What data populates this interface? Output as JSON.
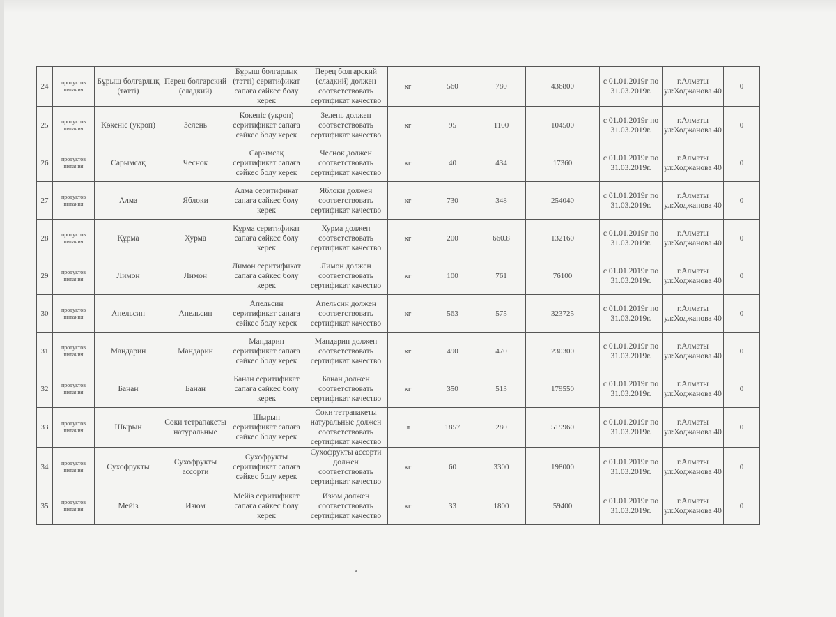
{
  "table": {
    "rows": [
      [
        "24",
        "продуктов питания",
        "Бұрыш болгарлық (тәтті)",
        "Перец болгарский (сладкий)",
        "Бұрыш болгарлық (тәтті) серитификат сапаға сәйкес болу керек",
        "Перец болгарский (сладкий) должен соответствовать сертификат качество",
        "кг",
        "560",
        "780",
        "436800",
        "с 01.01.2019г по 31.03.2019г.",
        "г.Алматы ул:Ходжанова 40",
        "0"
      ],
      [
        "25",
        "продуктов питания",
        "Көкеніс (укроп)",
        "Зелень",
        "Көкеніс (укроп) серитификат сапаға сәйкес болу керек",
        "Зелень должен соответствовать сертификат качество",
        "кг",
        "95",
        "1100",
        "104500",
        "с 01.01.2019г по 31.03.2019г.",
        "г.Алматы ул:Ходжанова 40",
        "0"
      ],
      [
        "26",
        "продуктов питания",
        "Сарымсақ",
        "Чеснок",
        "Сарымсақ серитификат сапаға сәйкес болу керек",
        "Чеснок должен соответствовать сертификат качество",
        "кг",
        "40",
        "434",
        "17360",
        "с 01.01.2019г по 31.03.2019г.",
        "г.Алматы ул:Ходжанова 40",
        "0"
      ],
      [
        "27",
        "продуктов питания",
        "Алма",
        "Яблоки",
        "Алма серитификат сапаға сәйкес болу керек",
        "Яблоки должен соответствовать сертификат качество",
        "кг",
        "730",
        "348",
        "254040",
        "с 01.01.2019г по 31.03.2019г.",
        "г.Алматы ул:Ходжанова 40",
        "0"
      ],
      [
        "28",
        "продуктов питания",
        "Құрма",
        "Хурма",
        "Құрма серитификат сапаға сәйкес болу керек",
        "Хурма должен соответствовать сертификат качество",
        "кг",
        "200",
        "660.8",
        "132160",
        "с 01.01.2019г по 31.03.2019г.",
        "г.Алматы ул:Ходжанова 40",
        "0"
      ],
      [
        "29",
        "продуктов питания",
        "Лимон",
        "Лимон",
        "Лимон серитификат сапаға сәйкес болу керек",
        "Лимон должен соответствовать сертификат качество",
        "кг",
        "100",
        "761",
        "76100",
        "с 01.01.2019г по 31.03.2019г.",
        "г.Алматы ул:Ходжанова 40",
        "0"
      ],
      [
        "30",
        "продуктов питания",
        "Апельсин",
        "Апельсин",
        "Апельсин серитификат сапаға сәйкес болу керек",
        "Апельсин должен соответствовать сертификат качество",
        "кг",
        "563",
        "575",
        "323725",
        "с 01.01.2019г по 31.03.2019г.",
        "г.Алматы ул:Ходжанова 40",
        "0"
      ],
      [
        "31",
        "продуктов питания",
        "Мандарин",
        "Мандарин",
        "Мандарин серитификат сапаға сәйкес болу керек",
        "Мандарин должен соответствовать сертификат качество",
        "кг",
        "490",
        "470",
        "230300",
        "с 01.01.2019г по 31.03.2019г.",
        "г.Алматы ул:Ходжанова 40",
        "0"
      ],
      [
        "32",
        "продуктов питания",
        "Банан",
        "Банан",
        "Банан серитификат сапаға сәйкес болу керек",
        "Банан должен соответствовать сертификат качество",
        "кг",
        "350",
        "513",
        "179550",
        "с 01.01.2019г по 31.03.2019г.",
        "г.Алматы ул:Ходжанова 40",
        "0"
      ],
      [
        "33",
        "продуктов питания",
        "Шырын",
        "Соки тетрапакеты натуральные",
        "Шырын серитификат сапаға сәйкес болу керек",
        "Соки тетрапакеты натуральные должен соответствовать сертификат качество",
        "л",
        "1857",
        "280",
        "519960",
        "с 01.01.2019г по 31.03.2019г.",
        "г.Алматы ул:Ходжанова 40",
        "0"
      ],
      [
        "34",
        "продуктов питания",
        "Сухофрукты",
        "Сухофрукты ассорти",
        "Сухофрукты серитификат сапаға сәйкес болу керек",
        "Сухофрукты ассорти должен соответствовать сертификат качество",
        "кг",
        "60",
        "3300",
        "198000",
        "с 01.01.2019г по 31.03.2019г.",
        "г.Алматы ул:Ходжанова 40",
        "0"
      ],
      [
        "35",
        "продуктов питания",
        "Мейіз",
        "Изюм",
        "Мейіз серитификат сапаға сәйкес болу керек",
        "Изюм должен соответствовать сертификат качество",
        "кг",
        "33",
        "1800",
        "59400",
        "с 01.01.2019г по 31.03.2019г.",
        "г.Алматы ул:Ходжанова 40",
        "0"
      ]
    ]
  }
}
